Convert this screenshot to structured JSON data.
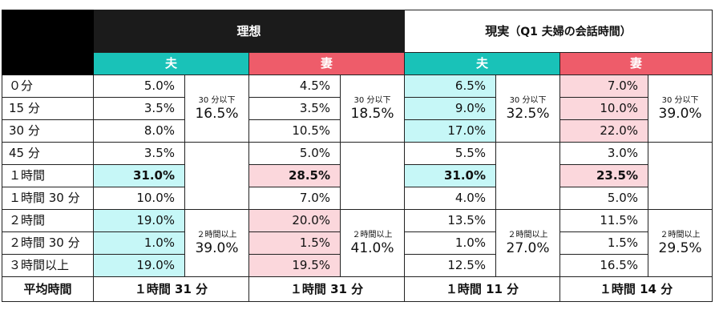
{
  "header": {
    "ideal": "理想",
    "real": "現実",
    "real_sub": "（Q1 夫婦の会話時間）"
  },
  "sub": {
    "husband": "夫",
    "wife": "妻"
  },
  "rows": [
    {
      "label": "０分",
      "v": [
        "5.0%",
        "4.5%",
        "6.5%",
        "7.0%"
      ]
    },
    {
      "label": "15 分",
      "v": [
        "3.5%",
        "3.5%",
        "9.0%",
        "10.0%"
      ]
    },
    {
      "label": "30 分",
      "v": [
        "8.0%",
        "10.5%",
        "17.0%",
        "22.0%"
      ]
    },
    {
      "label": "45 分",
      "v": [
        "3.5%",
        "5.0%",
        "5.5%",
        "3.0%"
      ]
    },
    {
      "label": "１時間",
      "v": [
        "31.0%",
        "28.5%",
        "31.0%",
        "23.5%"
      ]
    },
    {
      "label": "１時間 30 分",
      "v": [
        "10.0%",
        "7.0%",
        "4.0%",
        "5.0%"
      ]
    },
    {
      "label": "２時間",
      "v": [
        "19.0%",
        "20.0%",
        "13.5%",
        "11.5%"
      ]
    },
    {
      "label": "２時間 30 分",
      "v": [
        "1.0%",
        "1.5%",
        "1.0%",
        "1.5%"
      ]
    },
    {
      "label": "３時間以上",
      "v": [
        "19.0%",
        "19.5%",
        "12.5%",
        "16.5%"
      ]
    }
  ],
  "groups": {
    "under30": {
      "label": "30 分以下",
      "values": [
        "16.5%",
        "18.5%",
        "32.5%",
        "39.0%"
      ]
    },
    "over2h": {
      "label": "２時間以上",
      "values": [
        "39.0%",
        "41.0%",
        "27.0%",
        "29.5%"
      ]
    }
  },
  "average": {
    "label": "平均時間",
    "values": [
      "１時間 31 分",
      "１時間 31 分",
      "１時間 11 分",
      "１時間 14 分"
    ]
  },
  "colors": {
    "ideal_header": "#1b1b1b",
    "husband_teal": "#19c2b8",
    "wife_red": "#ee5c6a",
    "highlight_cyan": "#c6f7f7",
    "highlight_pink": "#fbd7dc"
  }
}
